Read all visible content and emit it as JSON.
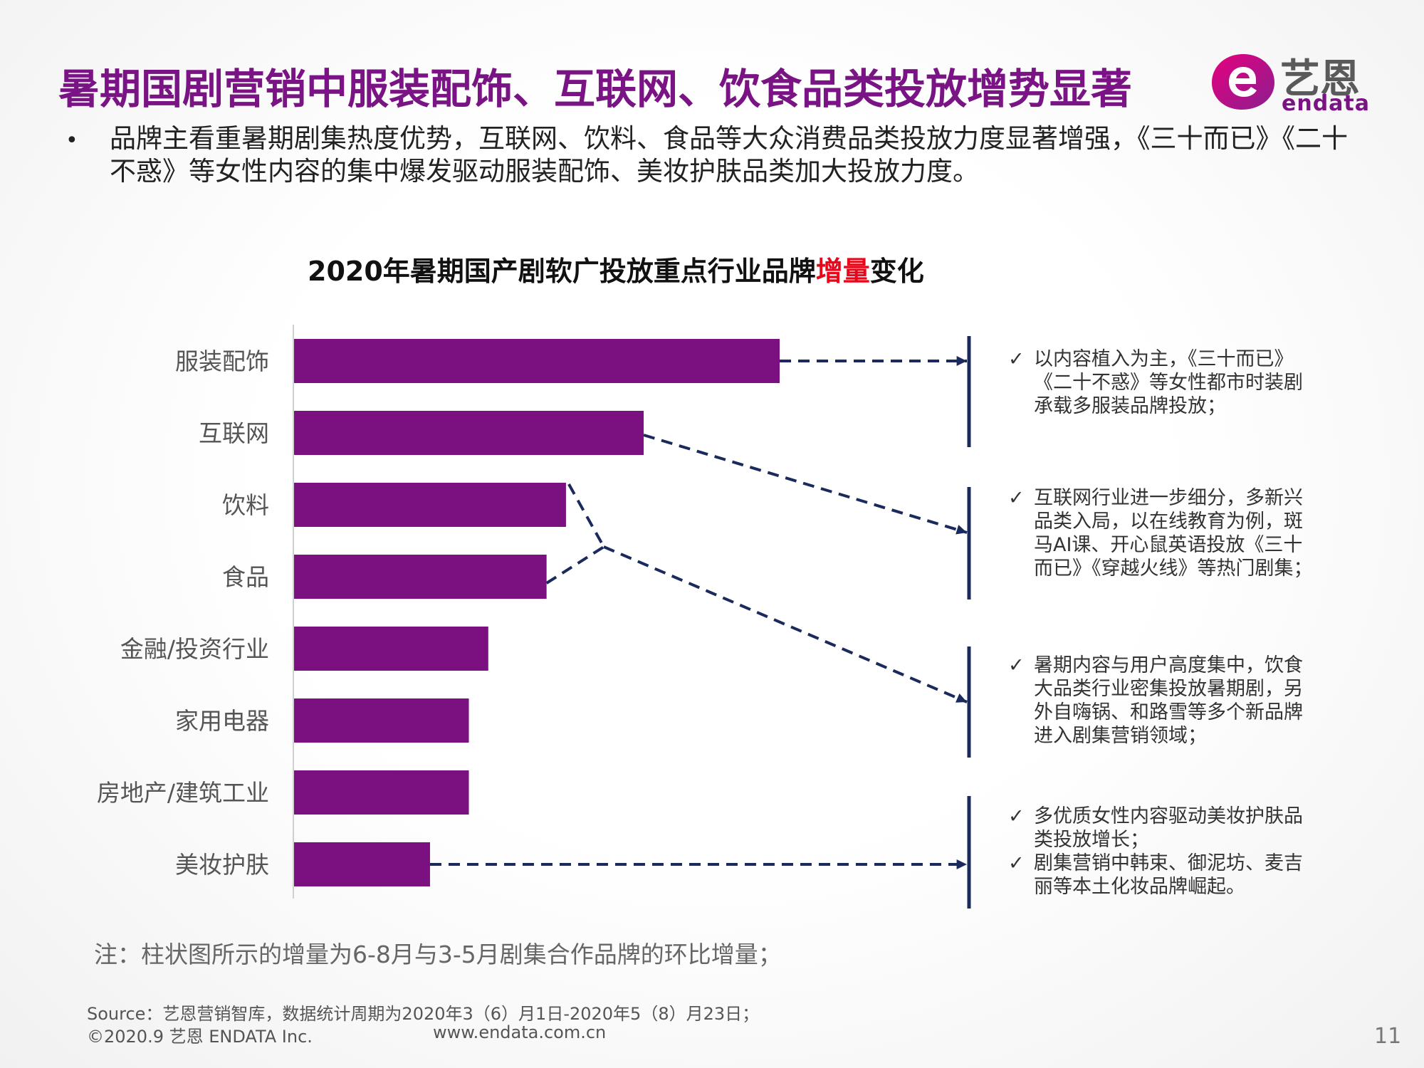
{
  "header": {
    "title": "暑期国剧营销中服装配饰、互联网、饮食品类投放增势显著",
    "summary": "品牌主看重暑期剧集热度优势，互联网、饮料、食品等大众消费品类投放力度显著增强，《三十而已》《二十不惑》等女性内容的集中爆发驱动服装配饰、美妆护肤品类加大投放力度。",
    "bullet": "•"
  },
  "logo": {
    "cn": "艺恩",
    "en": "endata"
  },
  "chart_data": {
    "type": "bar",
    "orientation": "horizontal",
    "title_before": "2020年暑期国产剧软广投放重点行业品牌",
    "title_highlight": "增量",
    "title_after": "变化",
    "categories": [
      "服装配饰",
      "互联网",
      "饮料",
      "食品",
      "金融/投资行业",
      "家用电器",
      "房地产/建筑工业",
      "美妆护肤"
    ],
    "values": [
      100,
      72,
      56,
      52,
      40,
      36,
      36,
      28
    ],
    "value_scale": "relative (no axis printed)",
    "xlim": [
      0,
      100
    ],
    "grid": false,
    "bar_color": "#7b1180"
  },
  "annotations": [
    {
      "lines": [
        "以内容植入为主，《三十而已》《二十不惑》等女性都市时装剧承载多服装品牌投放；"
      ]
    },
    {
      "lines": [
        "互联网行业进一步细分，多新兴品类入局，以在线教育为例，斑马AI课、开心鼠英语投放《三十而已》《穿越火线》等热门剧集；"
      ]
    },
    {
      "lines": [
        "暑期内容与用户高度集中，饮食大品类行业密集投放暑期剧，另外自嗨锅、和路雪等多个新品牌进入剧集营销领域；"
      ]
    },
    {
      "lines": [
        "多优质女性内容驱动美妆护肤品类投放增长；",
        "剧集营销中韩束、御泥坊、麦吉丽等本土化妆品牌崛起。"
      ]
    }
  ],
  "check_mark": "✓",
  "footnote": "注：柱状图所示的增量为6-8月与3-5月剧集合作品牌的环比增量；",
  "footer": {
    "source": "Source：艺恩营销智库，数据统计周期为2020年3（6）月1日-2020年5（8）月23日；",
    "copyright": "©2020.9 艺恩 ENDATA Inc.",
    "website": "www.endata.com.cn",
    "page_number": "11"
  },
  "colors": {
    "title": "#7a1485",
    "bar": "#7b1180",
    "connector": "#1a2a5c",
    "highlight": "#e8071a"
  }
}
